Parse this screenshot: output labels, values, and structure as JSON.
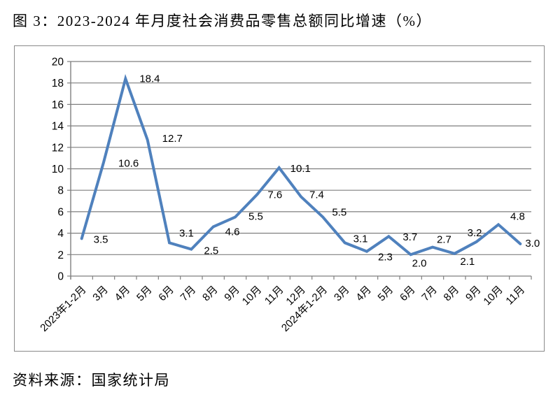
{
  "figure": {
    "title": "图 3：2023-2024 年月度社会消费品零售总额同比增速（%）",
    "source": "资料来源：国家统计局"
  },
  "chart_data": {
    "type": "line",
    "title": "图 3：2023-2024 年月度社会消费品零售总额同比增速（%）",
    "categories": [
      "2023年1-2月",
      "3月",
      "4月",
      "5月",
      "6月",
      "7月",
      "8月",
      "9月",
      "10月",
      "11月",
      "12月",
      "2024年1-2月",
      "3月",
      "4月",
      "5月",
      "6月",
      "7月",
      "8月",
      "9月",
      "10月",
      "11月"
    ],
    "series": [
      {
        "name": "社会消费品零售总额同比增速",
        "values": [
          3.5,
          10.6,
          18.4,
          12.7,
          3.1,
          2.5,
          4.6,
          5.5,
          7.6,
          10.1,
          7.4,
          5.5,
          3.1,
          2.3,
          3.7,
          2.0,
          2.7,
          2.1,
          3.2,
          4.8,
          3.0
        ]
      }
    ],
    "xlabel": "",
    "ylabel": "",
    "ylim": [
      0,
      20
    ],
    "ytick_step": 2,
    "grid": true,
    "legend_position": "none",
    "data_labels": true,
    "line_color": "#4f81bd",
    "grid_color": "#7f7f7f",
    "label_color": "#000000",
    "source_note": "资料来源：国家统计局"
  }
}
